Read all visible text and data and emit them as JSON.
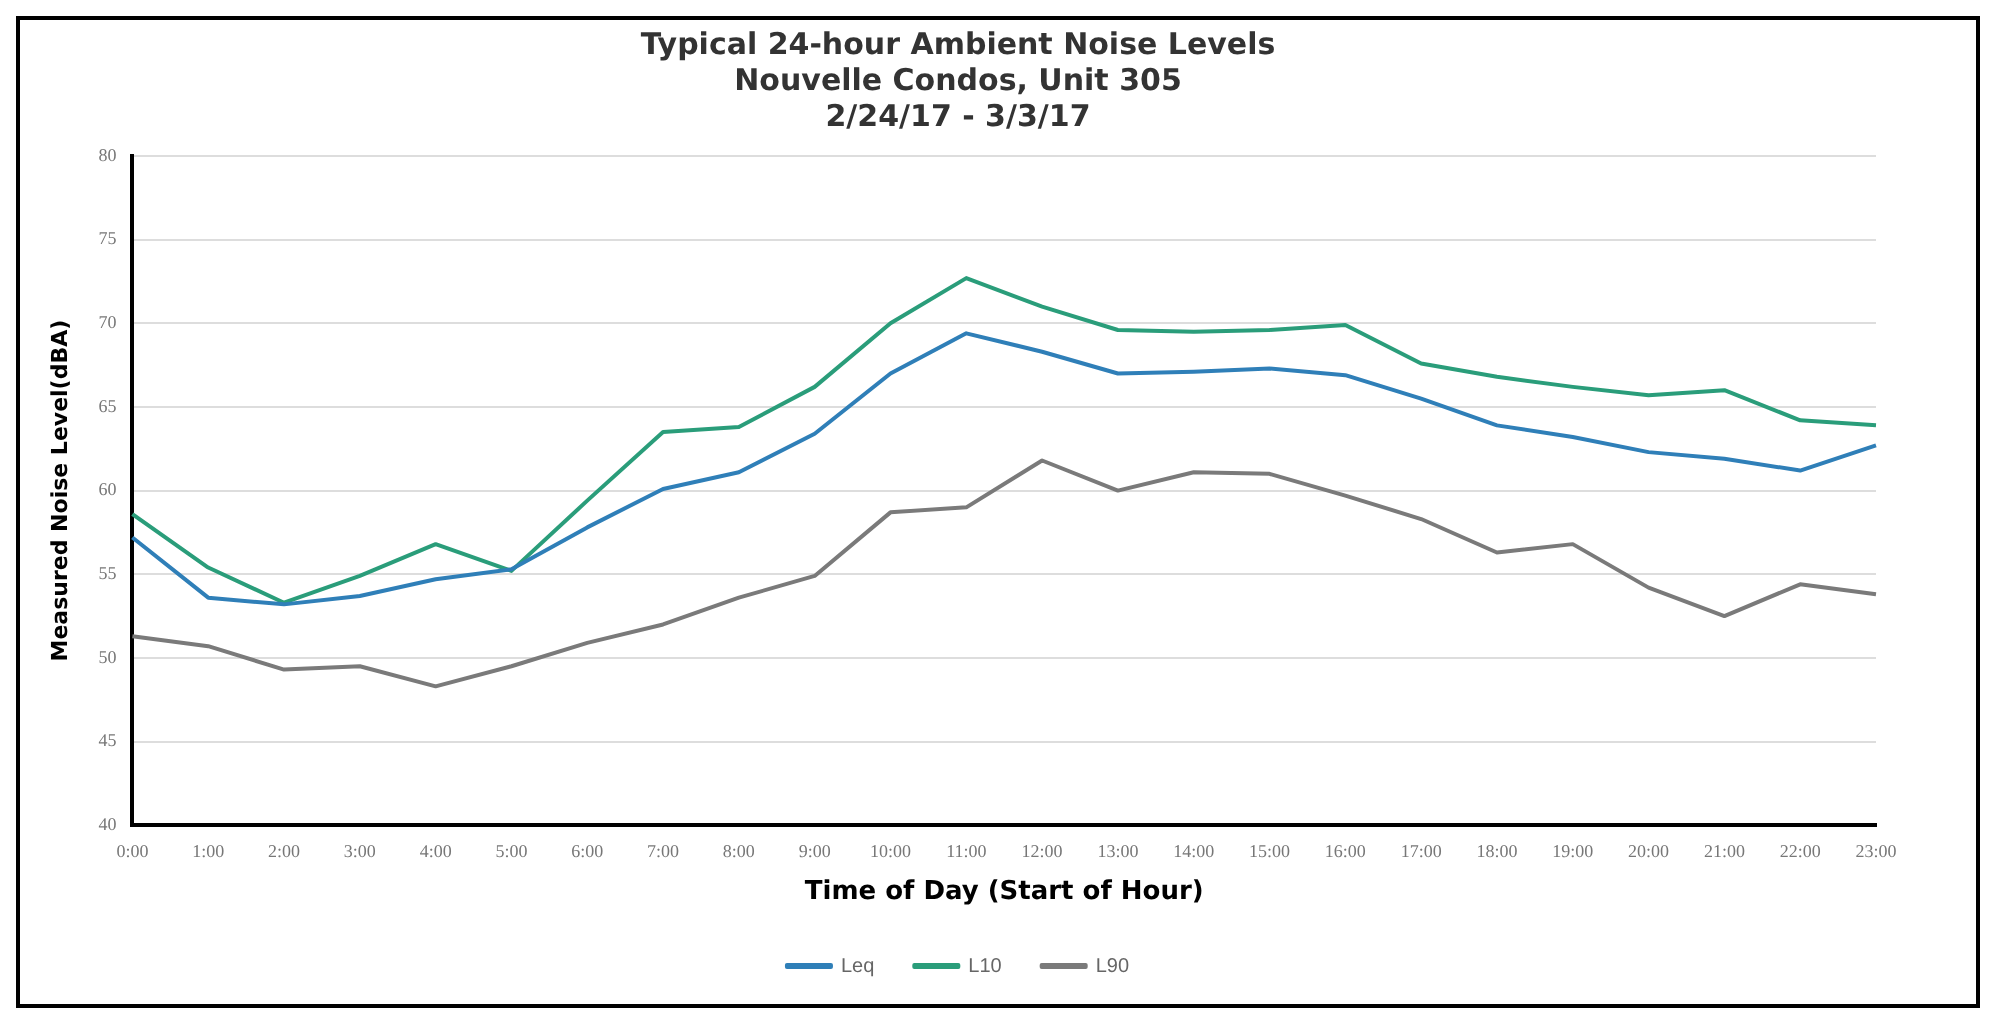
{
  "chart_data": {
    "type": "line",
    "title": [
      "Typical 24-hour Ambient Noise Levels",
      "Nouvelle Condos, Unit 305",
      "2/24/17 - 3/3/17"
    ],
    "xlabel": "Time of Day (Start of Hour)",
    "ylabel": "Measured Noise Level(dBA)",
    "categories": [
      "0:00",
      "1:00",
      "2:00",
      "3:00",
      "4:00",
      "5:00",
      "6:00",
      "7:00",
      "8:00",
      "9:00",
      "10:00",
      "11:00",
      "12:00",
      "13:00",
      "14:00",
      "15:00",
      "16:00",
      "17:00",
      "18:00",
      "19:00",
      "20:00",
      "21:00",
      "22:00",
      "23:00"
    ],
    "series": [
      {
        "name": "Leq",
        "color": "#2f7fb8",
        "values": [
          57.2,
          53.6,
          53.2,
          53.7,
          54.7,
          55.3,
          57.8,
          60.1,
          61.1,
          63.4,
          67.0,
          69.4,
          68.3,
          67.0,
          67.1,
          67.3,
          66.9,
          65.5,
          63.9,
          63.2,
          62.3,
          61.9,
          61.2,
          62.7
        ]
      },
      {
        "name": "L10",
        "color": "#2a9d7a",
        "values": [
          58.6,
          55.4,
          53.3,
          54.9,
          56.8,
          55.2,
          59.4,
          63.5,
          63.8,
          66.2,
          70.0,
          72.7,
          71.0,
          69.6,
          69.5,
          69.6,
          69.9,
          67.6,
          66.8,
          66.2,
          65.7,
          66.0,
          64.2,
          63.9
        ]
      },
      {
        "name": "L90",
        "color": "#7a7a7a",
        "values": [
          51.3,
          50.7,
          49.3,
          49.5,
          48.3,
          49.5,
          50.9,
          52.0,
          53.6,
          54.9,
          58.7,
          59.0,
          61.8,
          60.0,
          61.1,
          61.0,
          59.7,
          58.3,
          56.3,
          56.8,
          54.2,
          52.5,
          54.4,
          53.8
        ]
      }
    ],
    "ylim": [
      40,
      80
    ],
    "yticks": [
      40,
      45,
      50,
      55,
      60,
      65,
      70,
      75,
      80
    ],
    "grid": "y",
    "legend": "bottom",
    "marker": "none",
    "line_style": "solid"
  }
}
